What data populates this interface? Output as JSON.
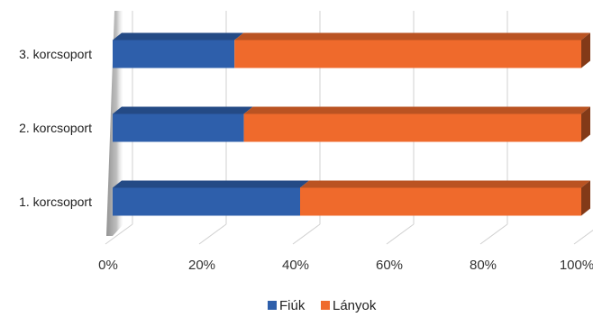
{
  "chart_data": {
    "type": "bar",
    "orientation": "horizontal",
    "stacked": "percent",
    "style": "3d",
    "categories": [
      "1. korcsoport",
      "2. korcsoport",
      "3. korcsoport"
    ],
    "series": [
      {
        "name": "Fiúk",
        "values": [
          40,
          28,
          26
        ],
        "color": "#2e5fab"
      },
      {
        "name": "Lányok",
        "values": [
          60,
          72,
          74
        ],
        "color": "#ef6a2c"
      }
    ],
    "xticks": [
      "0%",
      "20%",
      "40%",
      "60%",
      "80%",
      "100%"
    ],
    "xlim": [
      0,
      100
    ],
    "grid": true,
    "legend": "bottom"
  }
}
